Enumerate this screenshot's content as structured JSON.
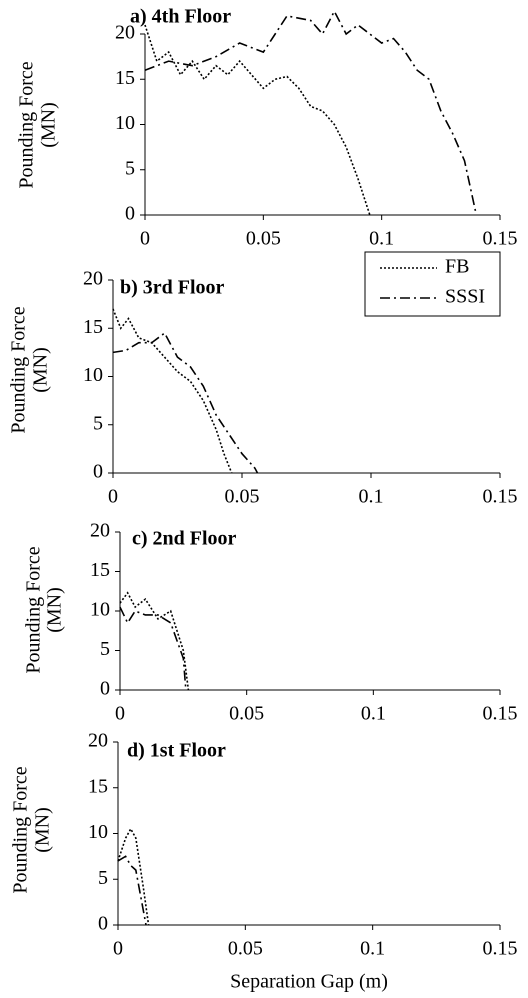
{
  "chart_data": [
    {
      "type": "line",
      "title": "a) 4th Floor",
      "ylabel": [
        "Pounding Force",
        "(MN)"
      ],
      "xlim": [
        0,
        0.15
      ],
      "xticks": [
        0,
        0.05,
        0.1,
        0.15
      ],
      "ylim": [
        0,
        20
      ],
      "yticks": [
        0,
        5,
        10,
        15,
        20
      ],
      "series": [
        {
          "color": "#000000",
          "style": "dotted",
          "x": [
            0,
            0.005,
            0.01,
            0.015,
            0.02,
            0.025,
            0.03,
            0.035,
            0.04,
            0.045,
            0.05,
            0.055,
            0.06,
            0.065,
            0.07,
            0.075,
            0.08,
            0.085,
            0.09,
            0.095
          ],
          "values": [
            21,
            17,
            18,
            15.5,
            17,
            15,
            16.5,
            15.5,
            17,
            15.5,
            14,
            15,
            15.3,
            14,
            12,
            11.5,
            10,
            7.5,
            4,
            0
          ]
        },
        {
          "color": "#000000",
          "style": "dashdot",
          "x": [
            0,
            0.005,
            0.01,
            0.02,
            0.03,
            0.04,
            0.05,
            0.055,
            0.06,
            0.07,
            0.075,
            0.08,
            0.085,
            0.09,
            0.1,
            0.105,
            0.11,
            0.115,
            0.12,
            0.125,
            0.13,
            0.135,
            0.14
          ],
          "values": [
            16,
            16.5,
            17,
            16.5,
            17.5,
            19,
            18,
            20,
            22,
            21.5,
            20,
            22.5,
            20,
            21,
            19,
            19.5,
            18,
            16,
            15,
            11.5,
            9,
            6,
            0
          ]
        }
      ]
    },
    {
      "type": "line",
      "title": "b) 3rd Floor",
      "ylabel": [
        "Pounding Force",
        "(MN)"
      ],
      "legend": "upper right",
      "xlim": [
        0,
        0.15
      ],
      "xticks": [
        0,
        0.05,
        0.1,
        0.15
      ],
      "ylim": [
        0,
        20
      ],
      "yticks": [
        0,
        5,
        10,
        15,
        20
      ],
      "series": [
        {
          "name": "FB",
          "color": "#000000",
          "style": "dotted",
          "x": [
            0,
            0.003,
            0.006,
            0.01,
            0.015,
            0.02,
            0.025,
            0.03,
            0.035,
            0.04,
            0.043,
            0.046
          ],
          "values": [
            17,
            15,
            16,
            14,
            13.5,
            12,
            10.5,
            9.5,
            7.5,
            4.5,
            2,
            0
          ]
        },
        {
          "name": "SSSI",
          "color": "#000000",
          "style": "dashdot",
          "x": [
            0,
            0.005,
            0.01,
            0.015,
            0.02,
            0.025,
            0.03,
            0.035,
            0.04,
            0.045,
            0.05,
            0.055,
            0.056
          ],
          "values": [
            12.5,
            12.7,
            13.5,
            13.5,
            14.5,
            12,
            11,
            9,
            6,
            4,
            2,
            0.5,
            0
          ]
        }
      ]
    },
    {
      "type": "line",
      "title": "c) 2nd Floor",
      "ylabel": [
        "Pounding Force",
        "(MN)"
      ],
      "xlim": [
        0,
        0.15
      ],
      "xticks": [
        0,
        0.05,
        0.1,
        0.15
      ],
      "ylim": [
        0,
        20
      ],
      "yticks": [
        0,
        5,
        10,
        15,
        20
      ],
      "series": [
        {
          "color": "#000000",
          "style": "dotted",
          "x": [
            0,
            0.003,
            0.006,
            0.01,
            0.015,
            0.02,
            0.025,
            0.027
          ],
          "values": [
            11,
            12.3,
            10.5,
            11.5,
            9,
            10,
            5,
            0
          ]
        },
        {
          "color": "#000000",
          "style": "dashdot",
          "x": [
            0,
            0.003,
            0.006,
            0.01,
            0.015,
            0.02,
            0.025,
            0.026
          ],
          "values": [
            10.5,
            8.5,
            10,
            9.5,
            9.5,
            8.5,
            4,
            0
          ]
        }
      ]
    },
    {
      "type": "line",
      "title": "d) 1st Floor",
      "ylabel": [
        "Pounding Force",
        "(MN)"
      ],
      "xlabel": "Separation Gap (m)",
      "xlim": [
        0,
        0.15
      ],
      "xticks": [
        0,
        0.05,
        0.1,
        0.15
      ],
      "ylim": [
        0,
        20
      ],
      "yticks": [
        0,
        5,
        10,
        15,
        20
      ],
      "series": [
        {
          "color": "#000000",
          "style": "dotted",
          "x": [
            0,
            0.003,
            0.005,
            0.007,
            0.01,
            0.012
          ],
          "values": [
            7,
            9.5,
            10.5,
            9.5,
            4,
            0
          ]
        },
        {
          "color": "#000000",
          "style": "dashdot",
          "x": [
            0,
            0.003,
            0.005,
            0.007,
            0.009,
            0.011
          ],
          "values": [
            7,
            7.5,
            6.5,
            6,
            3,
            0
          ]
        }
      ]
    }
  ]
}
